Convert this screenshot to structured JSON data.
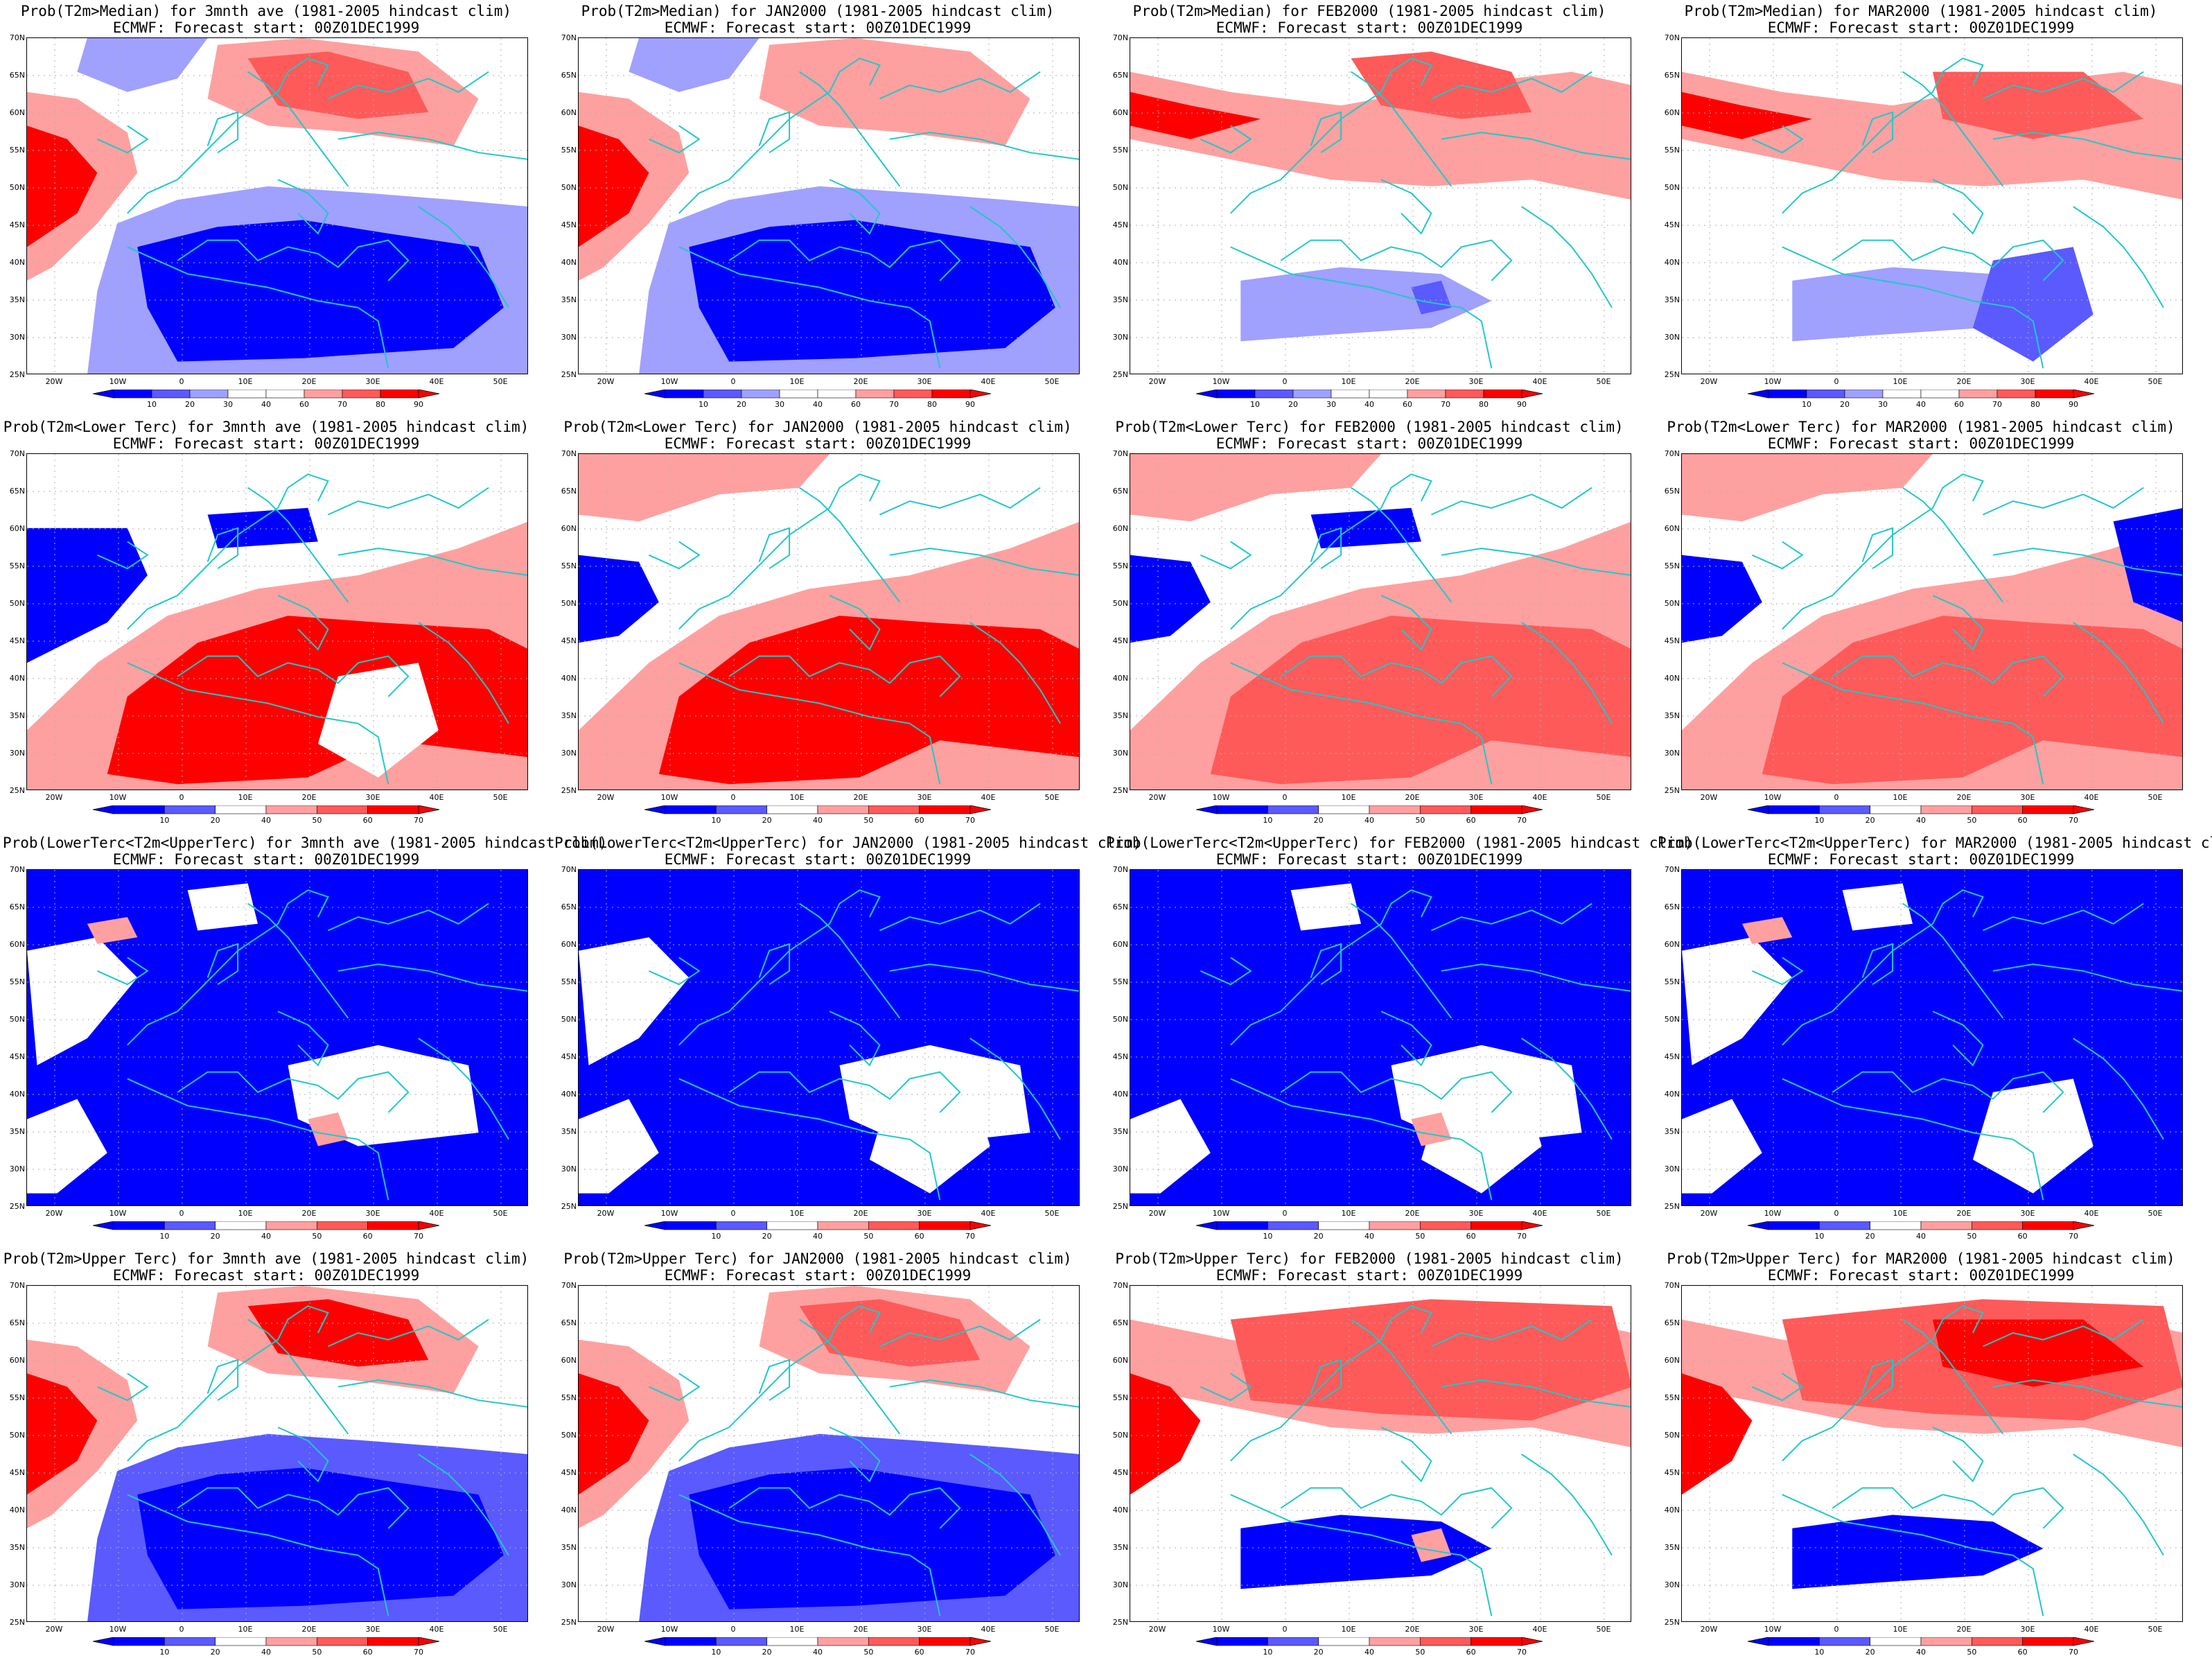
{
  "colors": {
    "blue_dark": "#0000ff",
    "blue_mid": "#5a5aff",
    "blue_light": "#a0a0ff",
    "red_light": "#ffa0a0",
    "red_mid": "#ff5a5a",
    "red_dark": "#ff0000",
    "coast": "#20c8c8"
  },
  "axes": {
    "lat_labels": [
      "70N",
      "65N",
      "60N",
      "55N",
      "50N",
      "45N",
      "40N",
      "35N",
      "30N",
      "25N"
    ],
    "lon_labels": [
      "20W",
      "10W",
      "0",
      "10E",
      "20E",
      "30E",
      "40E",
      "50E"
    ]
  },
  "colorbars": {
    "median": [
      "10",
      "20",
      "30",
      "40",
      "60",
      "70",
      "80",
      "90"
    ],
    "tercile": [
      "10",
      "20",
      "40",
      "50",
      "60",
      "70"
    ]
  },
  "subtitle": "ECMWF: Forecast start: 00Z01DEC1999",
  "panels": [
    {
      "title": "Prob(T2m>Median) for 3mnth ave (1981-2005 hindcast clim)",
      "cbar": "median"
    },
    {
      "title": "Prob(T2m>Median) for JAN2000 (1981-2005 hindcast clim)",
      "cbar": "median"
    },
    {
      "title": "Prob(T2m>Median) for FEB2000 (1981-2005 hindcast clim)",
      "cbar": "median"
    },
    {
      "title": "Prob(T2m>Median) for MAR2000 (1981-2005 hindcast clim)",
      "cbar": "median"
    },
    {
      "title": "Prob(T2m<Lower Terc) for 3mnth ave (1981-2005 hindcast clim)",
      "cbar": "tercile"
    },
    {
      "title": "Prob(T2m<Lower Terc) for JAN2000 (1981-2005 hindcast clim)",
      "cbar": "tercile"
    },
    {
      "title": "Prob(T2m<Lower Terc) for FEB2000 (1981-2005 hindcast clim)",
      "cbar": "tercile"
    },
    {
      "title": "Prob(T2m<Lower Terc) for MAR2000 (1981-2005 hindcast clim)",
      "cbar": "tercile"
    },
    {
      "title": "Prob(LowerTerc<T2m<UpperTerc) for 3mnth ave (1981-2005 hindcast clim)",
      "cbar": "tercile"
    },
    {
      "title": "Prob(LowerTerc<T2m<UpperTerc) for JAN2000 (1981-2005 hindcast clim)",
      "cbar": "tercile"
    },
    {
      "title": "Prob(LowerTerc<T2m<UpperTerc) for FEB2000 (1981-2005 hindcast clim)",
      "cbar": "tercile"
    },
    {
      "title": "Prob(LowerTerc<T2m<UpperTerc) for MAR2000 (1981-2005 hindcast clim)",
      "cbar": "tercile"
    },
    {
      "title": "Prob(T2m>Upper Terc) for 3mnth ave (1981-2005 hindcast clim)",
      "cbar": "tercile"
    },
    {
      "title": "Prob(T2m>Upper Terc) for JAN2000 (1981-2005 hindcast clim)",
      "cbar": "tercile"
    },
    {
      "title": "Prob(T2m>Upper Terc) for FEB2000 (1981-2005 hindcast clim)",
      "cbar": "tercile"
    },
    {
      "title": "Prob(T2m>Upper Terc) for MAR2000 (1981-2005 hindcast clim)",
      "cbar": "tercile"
    }
  ]
}
